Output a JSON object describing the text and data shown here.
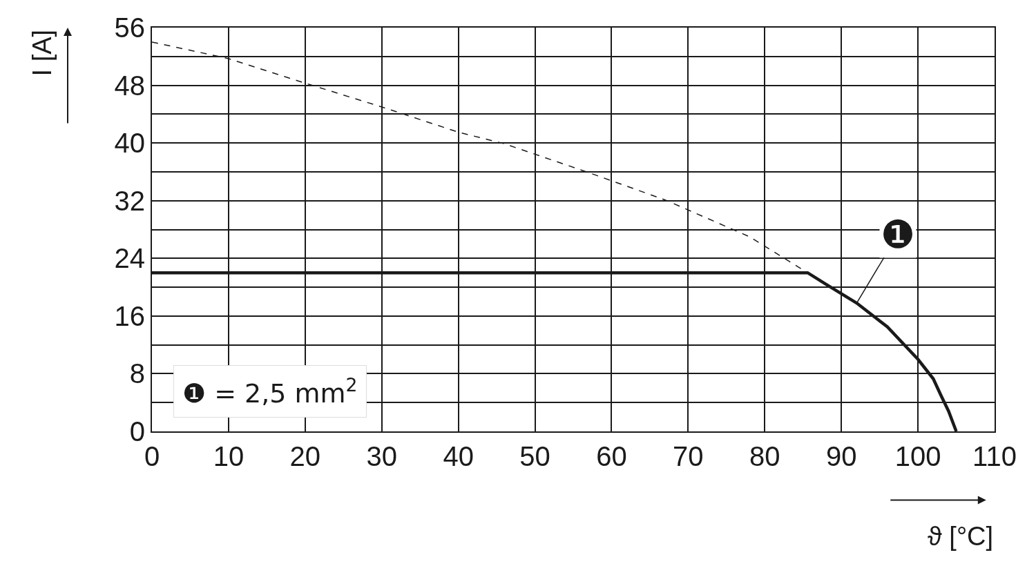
{
  "chart_data": {
    "type": "line",
    "xlabel": "ϑ [°C]",
    "ylabel": "I [A]",
    "xlim": [
      0,
      110
    ],
    "xticks": [
      0,
      10,
      20,
      30,
      40,
      50,
      60,
      70,
      80,
      90,
      100,
      110
    ],
    "ylim": [
      0,
      56
    ],
    "yticks": [
      0,
      {
        "value": 4,
        "label": null
      },
      8,
      {
        "value": 12,
        "label": null
      },
      16,
      {
        "value": 20,
        "label": null
      },
      24,
      {
        "value": 28,
        "label": null
      },
      32,
      {
        "value": 36,
        "label": null
      },
      40,
      {
        "value": 44,
        "label": null
      },
      48,
      {
        "value": 52,
        "label": null
      },
      56
    ],
    "grid": true,
    "legend": false,
    "marker": "none",
    "series": [
      {
        "color": "#1a1a1a",
        "line_style": "dashed",
        "x": [
          0,
          10,
          20,
          30,
          40,
          46,
          57,
          67,
          78,
          85.6
        ],
        "values": [
          54.0,
          51.7,
          48.3,
          45.0,
          41.5,
          39.9,
          35.9,
          32.1,
          27.0,
          22.0
        ]
      },
      {
        "color": "#1a1a1a",
        "line_style": "solid",
        "x": [
          0,
          85.6,
          88,
          92,
          96,
          100,
          102,
          103,
          104,
          105
        ],
        "values": [
          22.0,
          22.0,
          20.4,
          17.8,
          14.5,
          10.0,
          7.3,
          5.0,
          2.8,
          0
        ]
      }
    ],
    "annotations": [
      {
        "text": "❶",
        "x": 92,
        "y": 17.8
      },
      "❶ = 2,5 mm$^{2}$"
    ]
  }
}
